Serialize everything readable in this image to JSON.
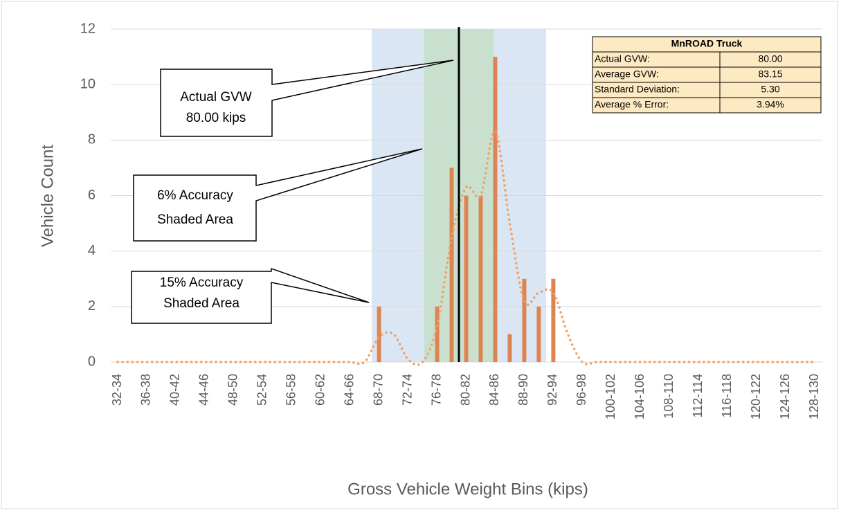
{
  "chart_data": {
    "type": "bar",
    "x_label": "Gross Vehicle Weight Bins (kips)",
    "y_label": "Vehicle Count",
    "categories": [
      "32-34",
      null,
      "36-38",
      null,
      "40-42",
      null,
      "44-46",
      null,
      "48-50",
      null,
      "52-54",
      null,
      "56-58",
      null,
      "60-62",
      null,
      "64-66",
      null,
      "68-70",
      null,
      "72-74",
      null,
      "76-78",
      null,
      "80-82",
      null,
      "84-86",
      null,
      "88-90",
      null,
      "92-94",
      null,
      "96-98",
      null,
      "100-102",
      null,
      "104-106",
      null,
      "108-110",
      null,
      "112-114",
      null,
      "116-118",
      null,
      "120-122",
      null,
      "124-126",
      null,
      "128-130"
    ],
    "series": [
      {
        "color": "#dd8452",
        "values": [
          0,
          0,
          0,
          0,
          0,
          0,
          0,
          0,
          0,
          0,
          0,
          0,
          0,
          0,
          0,
          0,
          0,
          0,
          2,
          0,
          0,
          0,
          2,
          7,
          6,
          6,
          11,
          1,
          3,
          2,
          3,
          0,
          0,
          0,
          0,
          0,
          0,
          0,
          0,
          0,
          0,
          0,
          0,
          0,
          0,
          0,
          0,
          0,
          0
        ]
      },
      {
        "type": "line",
        "color": "#f0a063",
        "values": [
          0,
          0,
          0,
          0,
          0,
          0,
          0,
          0,
          0,
          0,
          0,
          0,
          0,
          0,
          0,
          0,
          0,
          0,
          0.9,
          1.0,
          0.1,
          0,
          1.3,
          4.5,
          6.3,
          6.0,
          8.3,
          5.0,
          2.2,
          2.5,
          2.5,
          1.0,
          0,
          0,
          0,
          0,
          0,
          0,
          0,
          0,
          0,
          0,
          0,
          0,
          0,
          0,
          0,
          0,
          0
        ]
      }
    ],
    "ylim": [
      0,
      12
    ],
    "yticks": [
      0,
      2,
      4,
      6,
      8,
      10,
      12
    ],
    "grid": true,
    "shaded_ranges": [
      {
        "from": 68,
        "to": 92,
        "color": "#dae6f3"
      },
      {
        "from": 75.2,
        "to": 84.8,
        "color": "#c9e0cf"
      }
    ],
    "reference_line": 80,
    "annotations": [
      [
        "Actual GVW",
        "80.00 kips"
      ],
      [
        "6% Accuracy",
        "Shaded Area"
      ],
      [
        "15% Accuracy",
        "Shaded Area"
      ]
    ],
    "table": {
      "title": "MnROAD Truck",
      "rows": [
        [
          "Actual GVW:",
          "80.00"
        ],
        [
          "Average GVW:",
          "83.15"
        ],
        [
          "Standard Deviation:",
          "5.30"
        ],
        [
          "Average % Error:",
          "3.94%"
        ]
      ]
    }
  }
}
